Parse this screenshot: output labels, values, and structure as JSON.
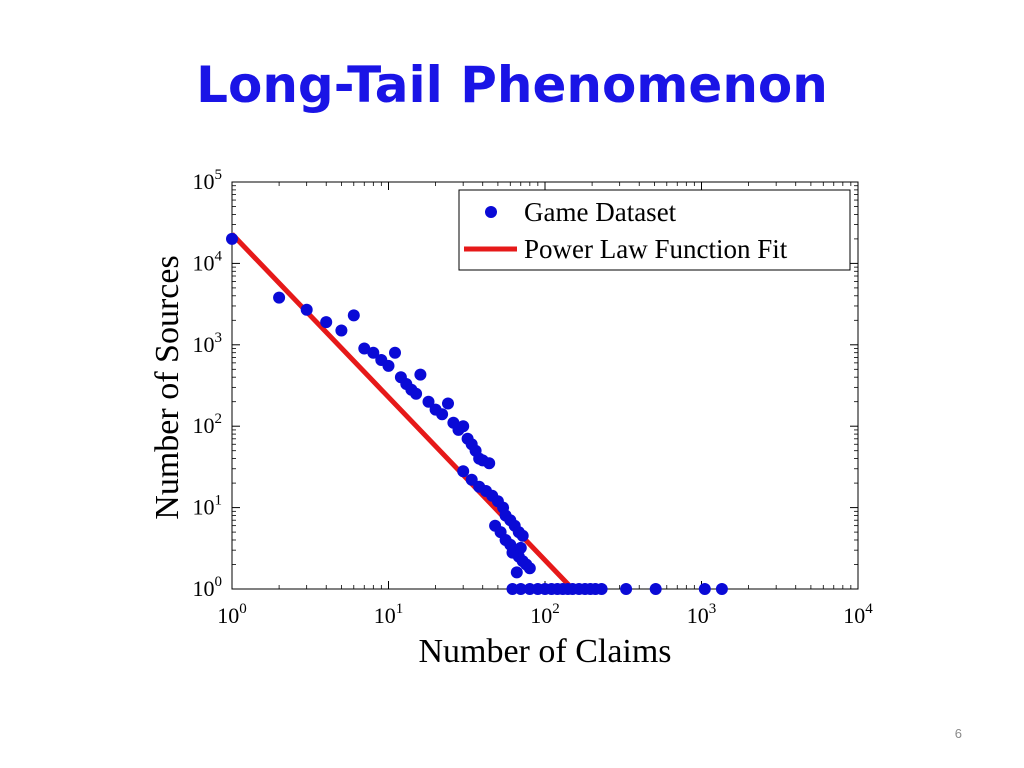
{
  "slide": {
    "title": "Long-Tail Phenomenon",
    "page_number": "6"
  },
  "chart_data": {
    "type": "scatter",
    "xlabel": "Number of Claims",
    "ylabel": "Number of Sources",
    "x_scale": "log",
    "y_scale": "log",
    "xlim": [
      1,
      10000
    ],
    "ylim": [
      1,
      100000
    ],
    "x_ticks": [
      {
        "value": 1,
        "base": "10",
        "exp": "0"
      },
      {
        "value": 10,
        "base": "10",
        "exp": "1"
      },
      {
        "value": 100,
        "base": "10",
        "exp": "2"
      },
      {
        "value": 1000,
        "base": "10",
        "exp": "3"
      },
      {
        "value": 10000,
        "base": "10",
        "exp": "4"
      }
    ],
    "y_ticks": [
      {
        "value": 1,
        "base": "10",
        "exp": "0"
      },
      {
        "value": 10,
        "base": "10",
        "exp": "1"
      },
      {
        "value": 100,
        "base": "10",
        "exp": "2"
      },
      {
        "value": 1000,
        "base": "10",
        "exp": "3"
      },
      {
        "value": 10000,
        "base": "10",
        "exp": "4"
      },
      {
        "value": 100000,
        "base": "10",
        "exp": "5"
      }
    ],
    "grid": false,
    "legend_position": "top-right",
    "series": [
      {
        "name": "Game Dataset",
        "kind": "scatter",
        "color": "#0a0ad6",
        "points": [
          [
            1,
            20000
          ],
          [
            2,
            3800
          ],
          [
            3,
            2700
          ],
          [
            4,
            1900
          ],
          [
            5,
            1500
          ],
          [
            6,
            2300
          ],
          [
            7,
            900
          ],
          [
            8,
            800
          ],
          [
            9,
            650
          ],
          [
            10,
            550
          ],
          [
            11,
            800
          ],
          [
            12,
            400
          ],
          [
            13,
            330
          ],
          [
            14,
            280
          ],
          [
            15,
            250
          ],
          [
            16,
            430
          ],
          [
            18,
            200
          ],
          [
            20,
            160
          ],
          [
            22,
            140
          ],
          [
            24,
            190
          ],
          [
            26,
            110
          ],
          [
            28,
            90
          ],
          [
            30,
            100
          ],
          [
            32,
            70
          ],
          [
            34,
            60
          ],
          [
            36,
            50
          ],
          [
            38,
            40
          ],
          [
            40,
            38
          ],
          [
            44,
            35
          ],
          [
            30,
            28
          ],
          [
            34,
            22
          ],
          [
            38,
            18
          ],
          [
            42,
            16
          ],
          [
            46,
            14
          ],
          [
            50,
            12
          ],
          [
            54,
            10
          ],
          [
            56,
            8
          ],
          [
            60,
            7
          ],
          [
            64,
            6
          ],
          [
            68,
            5
          ],
          [
            72,
            4.5
          ],
          [
            48,
            6
          ],
          [
            52,
            5
          ],
          [
            56,
            4
          ],
          [
            60,
            3.5
          ],
          [
            64,
            3
          ],
          [
            68,
            2.5
          ],
          [
            72,
            2.2
          ],
          [
            76,
            2
          ],
          [
            80,
            1.8
          ],
          [
            66,
            1.6
          ],
          [
            62,
            2.8
          ],
          [
            70,
            3.2
          ],
          [
            62,
            1
          ],
          [
            70,
            1
          ],
          [
            80,
            1
          ],
          [
            90,
            1
          ],
          [
            100,
            1
          ],
          [
            110,
            1
          ],
          [
            120,
            1
          ],
          [
            130,
            1
          ],
          [
            140,
            1
          ],
          [
            150,
            1
          ],
          [
            165,
            1
          ],
          [
            180,
            1
          ],
          [
            195,
            1
          ],
          [
            210,
            1
          ],
          [
            230,
            1
          ],
          [
            330,
            1
          ],
          [
            510,
            1
          ],
          [
            1050,
            1
          ],
          [
            1350,
            1
          ]
        ]
      },
      {
        "name": "Power Law Function Fit",
        "kind": "line",
        "color": "#e61919",
        "points": [
          [
            1,
            23000
          ],
          [
            150,
            1
          ]
        ]
      }
    ]
  }
}
